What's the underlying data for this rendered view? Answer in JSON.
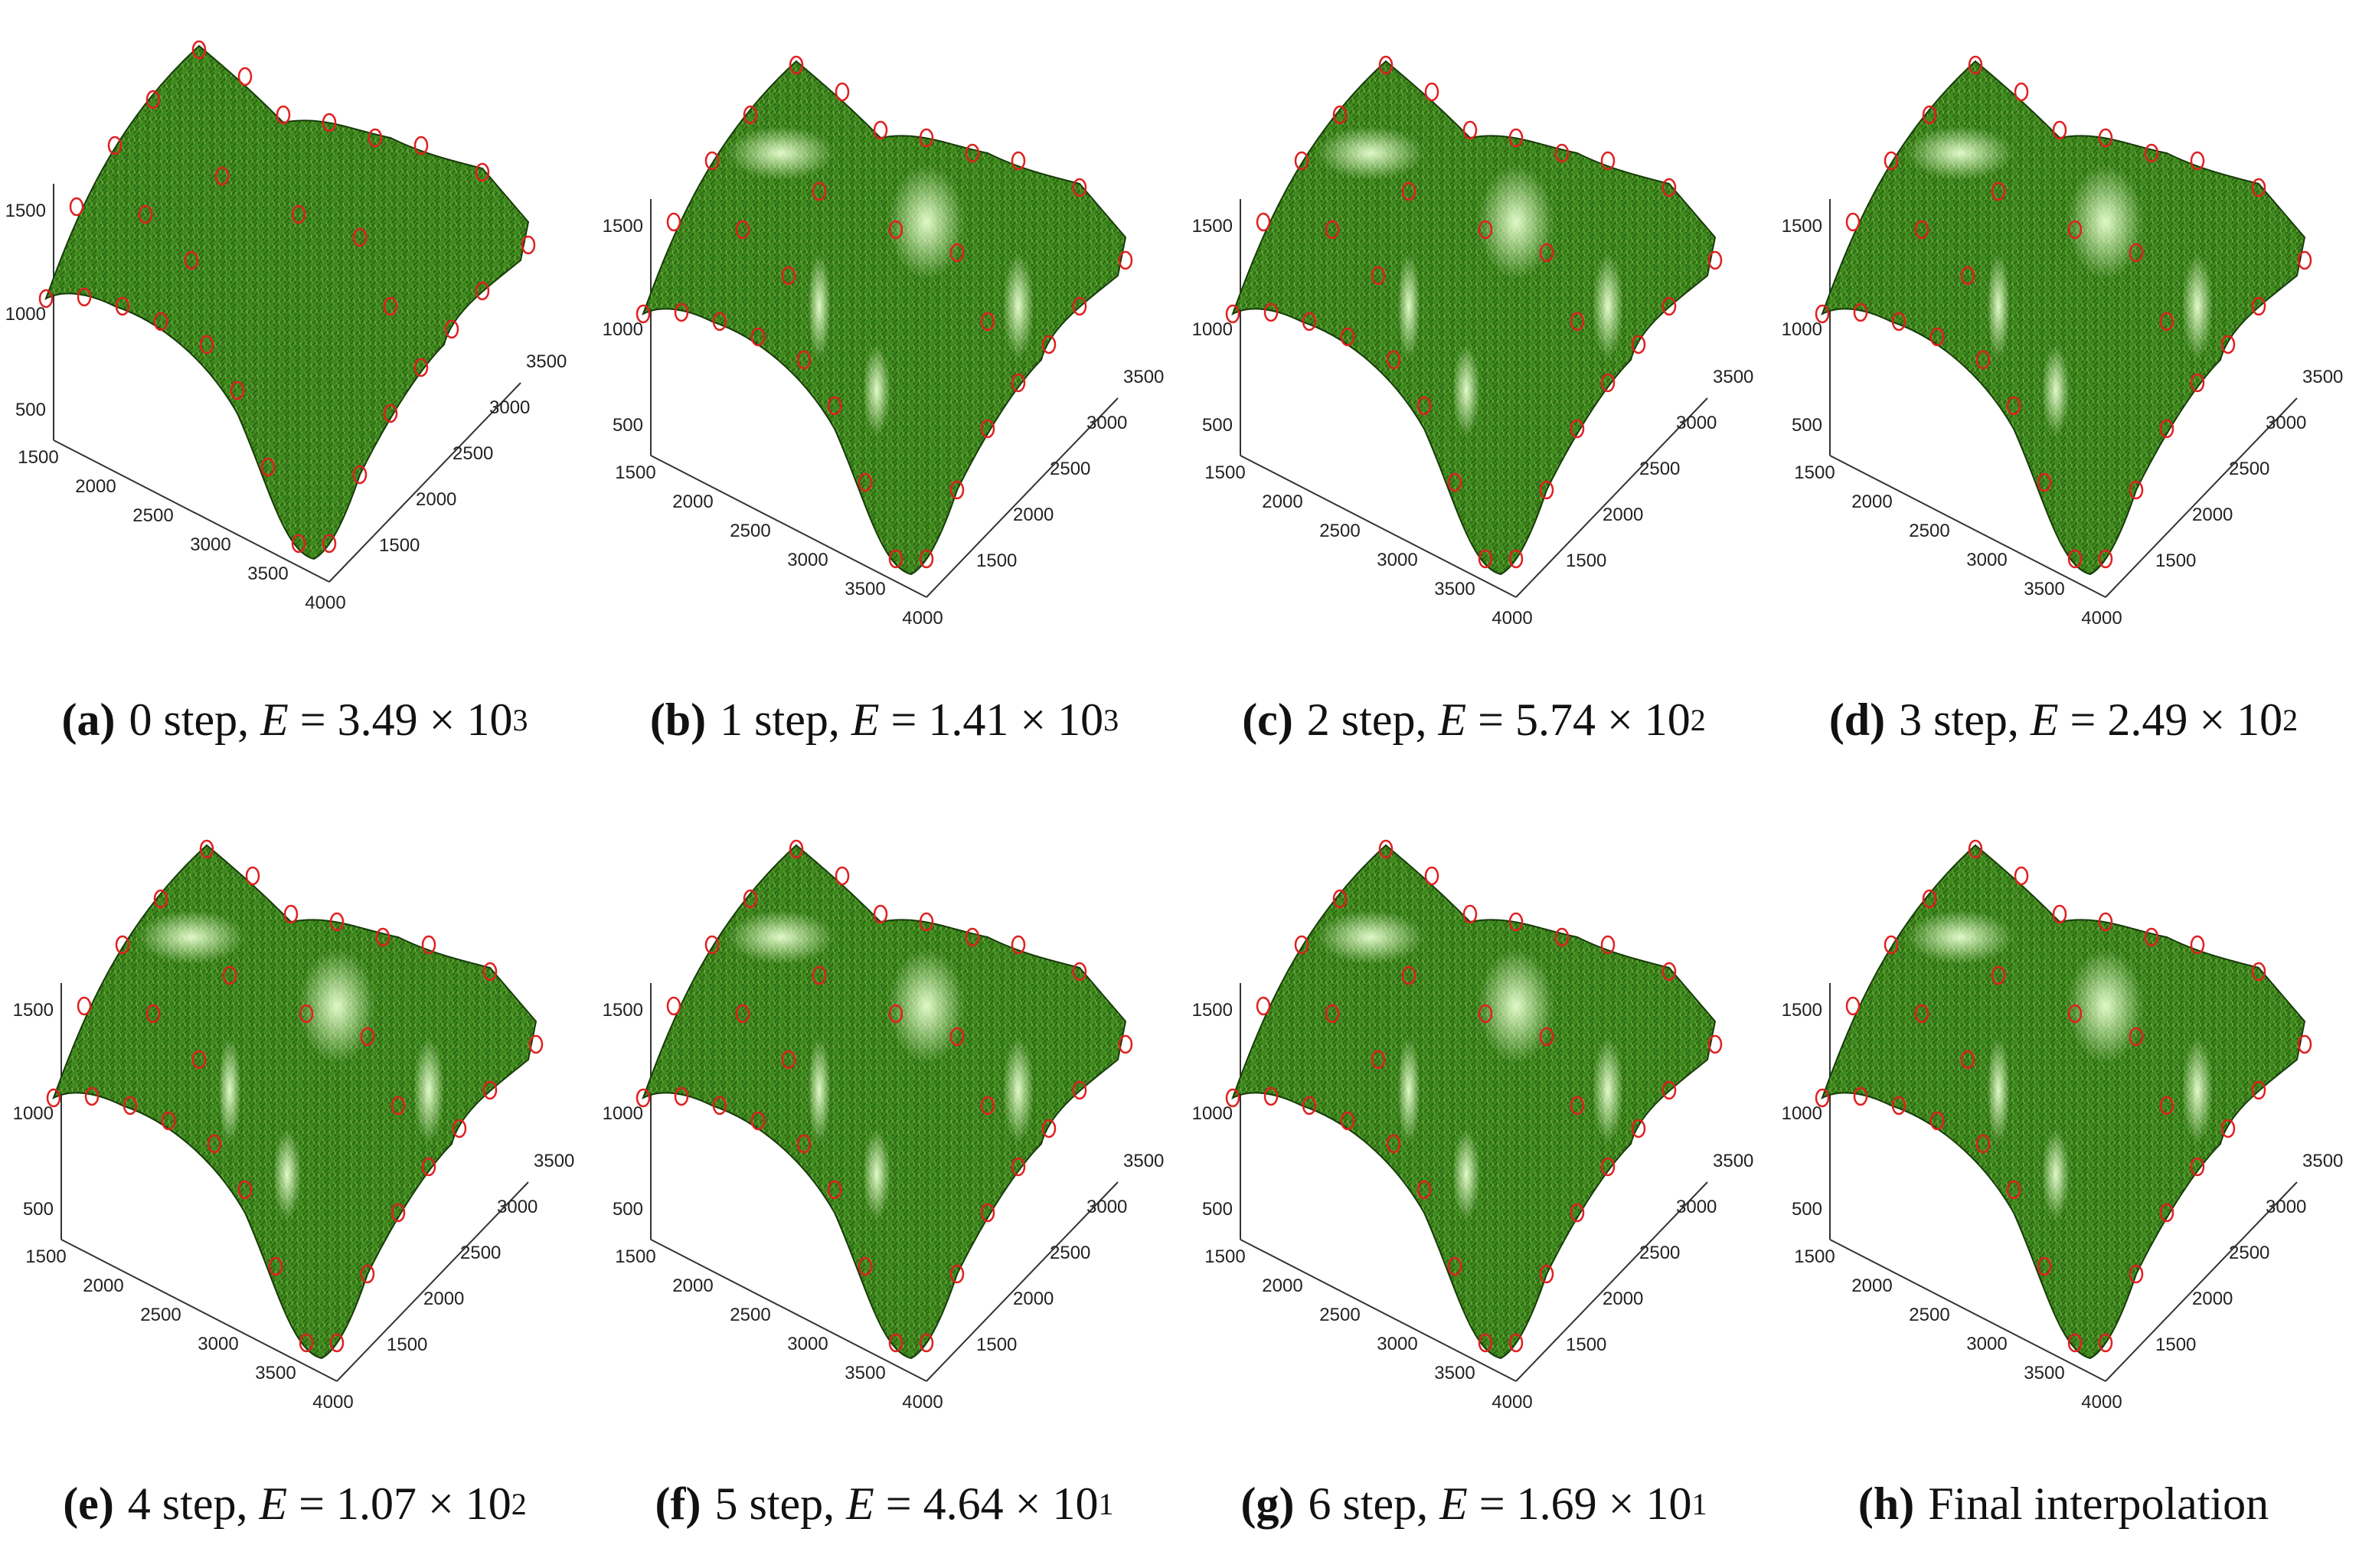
{
  "panels": [
    {
      "label": "(a)",
      "step": "0 step,",
      "e_sym": "E",
      "eq": "=",
      "mantissa": "3.49",
      "times": "×",
      "base": "10",
      "exp": "3"
    },
    {
      "label": "(b)",
      "step": "1 step,",
      "e_sym": "E",
      "eq": "=",
      "mantissa": "1.41",
      "times": "×",
      "base": "10",
      "exp": "3"
    },
    {
      "label": "(c)",
      "step": "2 step,",
      "e_sym": "E",
      "eq": "=",
      "mantissa": "5.74",
      "times": "×",
      "base": "10",
      "exp": "2"
    },
    {
      "label": "(d)",
      "step": "3 step,",
      "e_sym": "E",
      "eq": "=",
      "mantissa": "2.49",
      "times": "×",
      "base": "10",
      "exp": "2"
    },
    {
      "label": "(e)",
      "step": "4 step,",
      "e_sym": "E",
      "eq": "=",
      "mantissa": "1.07",
      "times": "×",
      "base": "10",
      "exp": "2"
    },
    {
      "label": "(f)",
      "step": "5 step,",
      "e_sym": "E",
      "eq": "=",
      "mantissa": "4.64",
      "times": "×",
      "base": "10",
      "exp": "1"
    },
    {
      "label": "(g)",
      "step": "6 step,",
      "e_sym": "E",
      "eq": "=",
      "mantissa": "1.69",
      "times": "×",
      "base": "10",
      "exp": "1"
    },
    {
      "label": "(h)",
      "text": "Final interpolation"
    }
  ],
  "axes": {
    "z_ticks": [
      "500",
      "1000",
      "1500"
    ],
    "x_ticks": [
      "1500",
      "2000",
      "2500",
      "3000",
      "3500",
      "4000"
    ],
    "y_ticks": [
      "1500",
      "2000",
      "2500",
      "3000",
      "3500"
    ]
  },
  "colors": {
    "surface": "#3f8a1e",
    "surface_dark": "#1f4a0c",
    "highlight": "#e8ffd0",
    "marker": "#e02020"
  }
}
